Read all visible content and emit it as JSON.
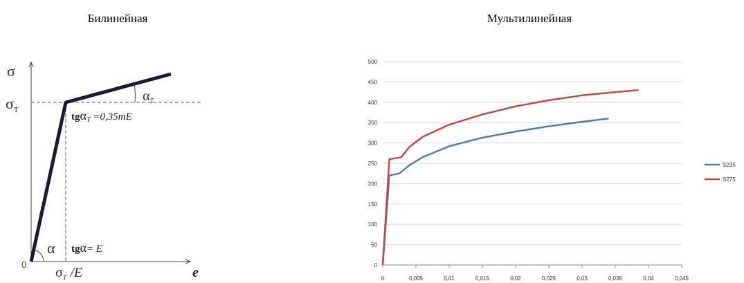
{
  "diagram": {
    "title": "Билинейная",
    "sigma": "σ",
    "sigma_t": {
      "base": "σ",
      "sub": "T"
    },
    "origin": "0",
    "alpha": "α",
    "tg_alpha": {
      "tg": "tg",
      "alpha": "α",
      "rest": "= E"
    },
    "alpha_t": {
      "base": "α",
      "sub": "T"
    },
    "tg_alpha_t": {
      "tg": "tg",
      "alpha": "α",
      "sub": "T",
      "rest": " =0,35mE"
    },
    "strain_yield": {
      "base": "σ",
      "sub": "T",
      "rest": " /E"
    },
    "e": "e"
  },
  "chart_data": {
    "type": "line",
    "title": "Мультилинейная",
    "xlim": [
      0,
      0.045
    ],
    "xticks": [
      0,
      {
        "value": 0.005,
        "label": "0,005"
      },
      {
        "value": 0.01,
        "label": "0,01"
      },
      {
        "value": 0.015,
        "label": "0,015"
      },
      {
        "value": 0.02,
        "label": "0,02"
      },
      {
        "value": 0.025,
        "label": "0,025"
      },
      {
        "value": 0.03,
        "label": "0,03"
      },
      {
        "value": 0.035,
        "label": "0,035"
      },
      {
        "value": 0.04,
        "label": "0,04"
      },
      {
        "value": 0.045,
        "label": "0,045"
      }
    ],
    "ylim": [
      0,
      500
    ],
    "yticks": [
      0,
      50,
      100,
      150,
      200,
      250,
      300,
      350,
      400,
      450,
      500
    ],
    "grid": true,
    "legend": "right",
    "series": [
      {
        "name": "S235",
        "color": "#4a7ebb",
        "x": [
          0,
          0.001,
          0.0025,
          0.004,
          0.006,
          0.01,
          0.015,
          0.02,
          0.025,
          0.03,
          0.034
        ],
        "values": [
          0,
          220,
          225,
          245,
          265,
          292,
          313,
          328,
          341,
          352,
          360
        ]
      },
      {
        "name": "S275",
        "color": "#be4b48",
        "x": [
          0,
          0.001,
          0.0028,
          0.004,
          0.006,
          0.01,
          0.015,
          0.02,
          0.025,
          0.03,
          0.035,
          0.0385
        ],
        "values": [
          0,
          260,
          265,
          290,
          315,
          345,
          370,
          390,
          405,
          417,
          425,
          430
        ]
      }
    ]
  }
}
